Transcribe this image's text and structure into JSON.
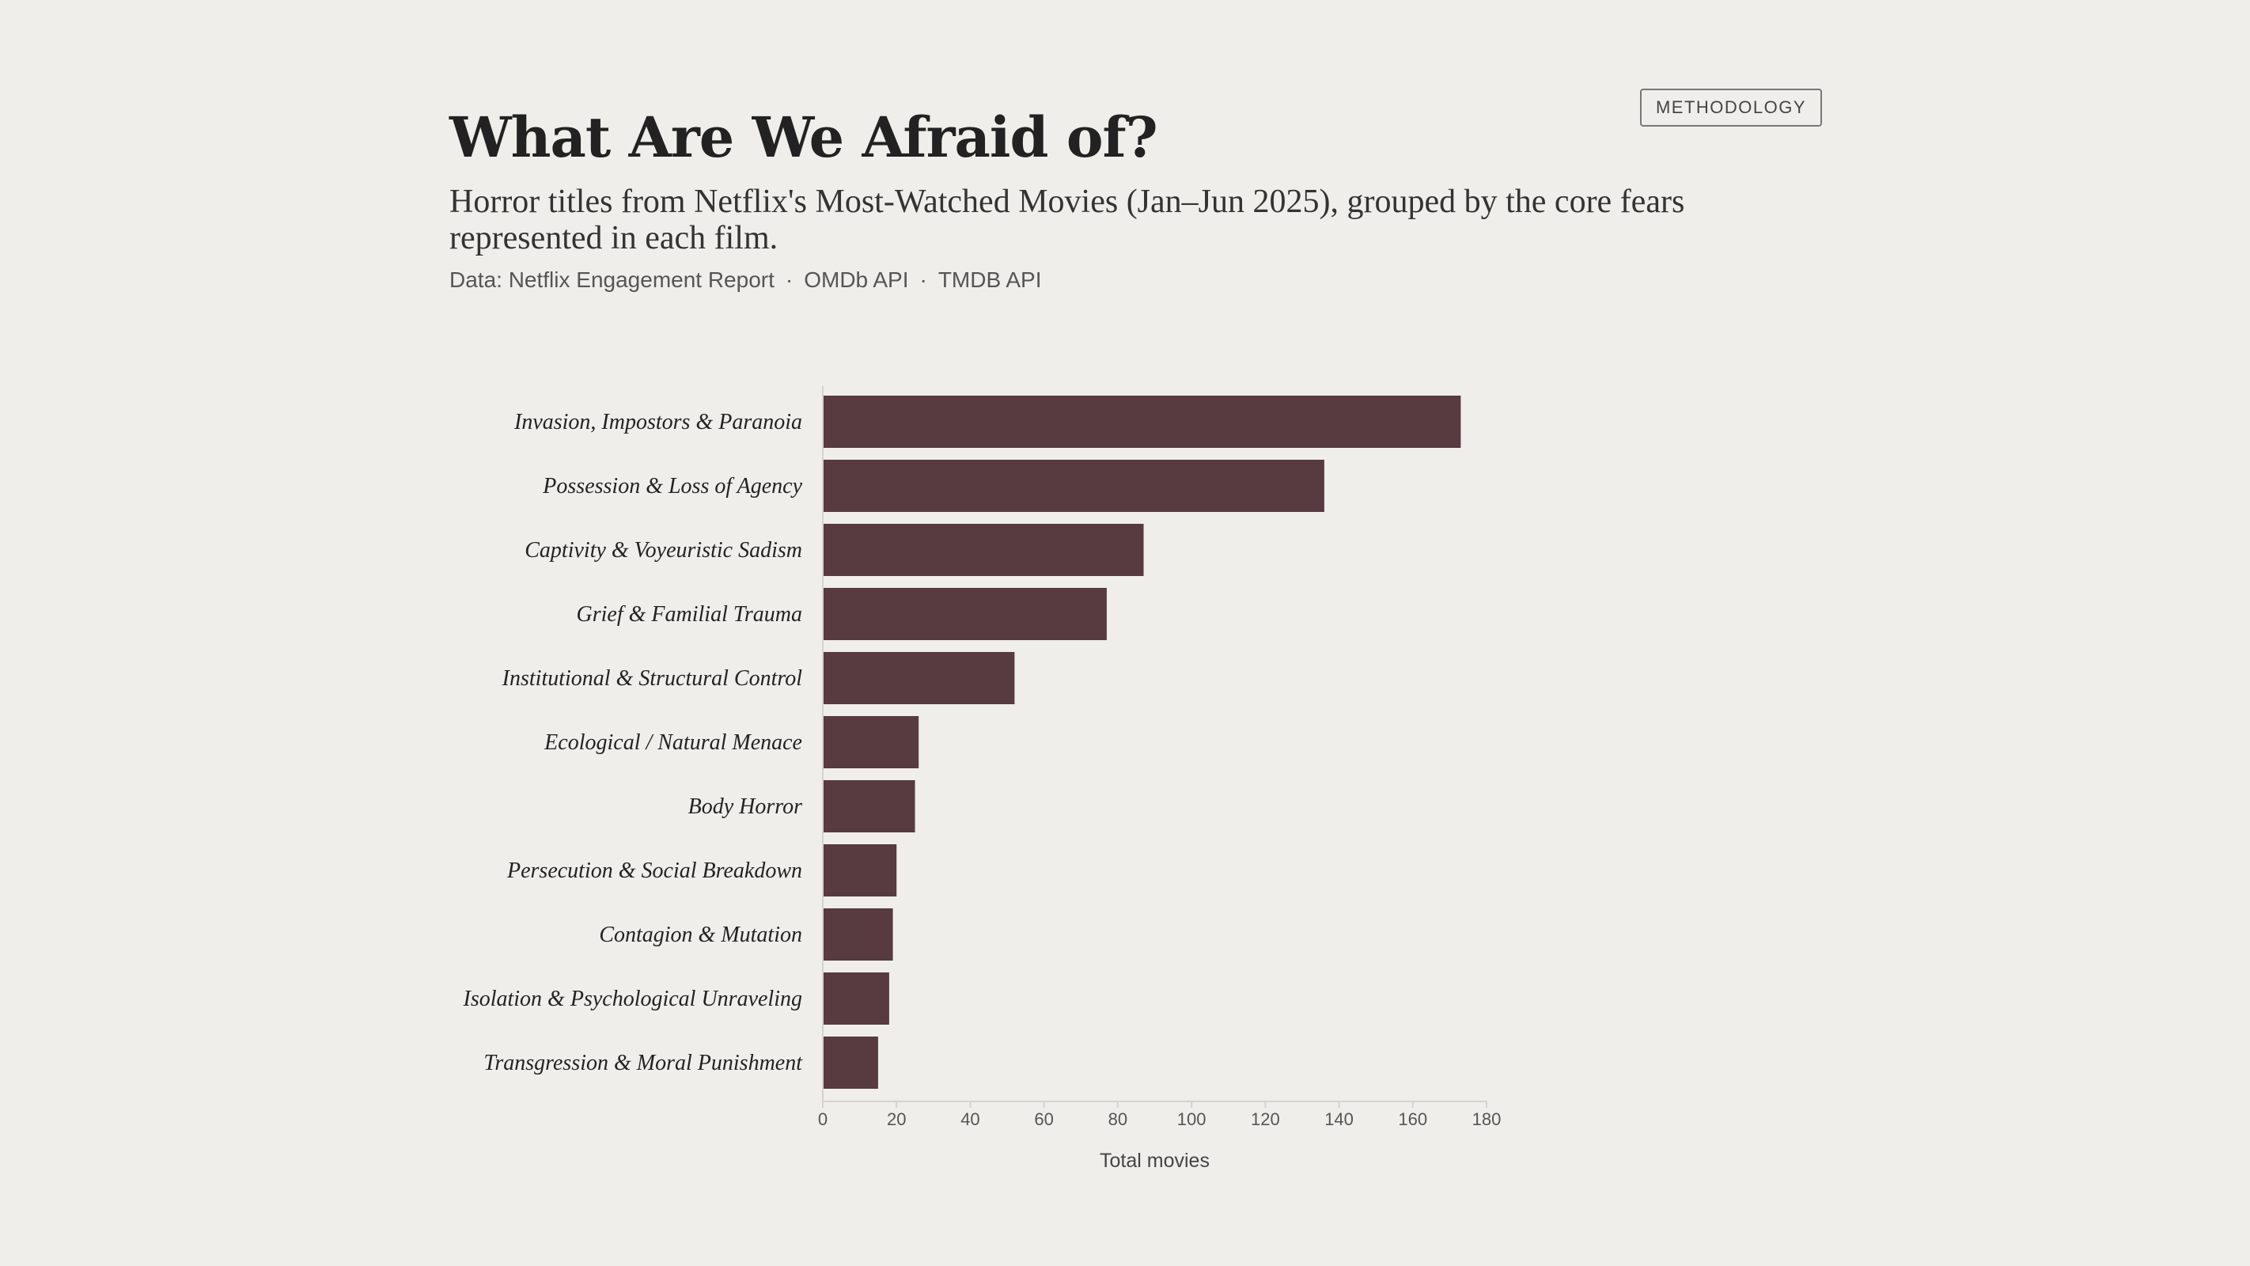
{
  "header": {
    "title": "What Are We Afraid of?",
    "subtitle": "Horror titles from Netflix's Most-Watched Movies (Jan–Jun 2025), grouped by the core fears represented in each film.",
    "sources": [
      "Data: Netflix Engagement Report",
      "OMDb API",
      "TMDB API"
    ],
    "separator": "·"
  },
  "methodology_button": {
    "label": "METHODOLOGY"
  },
  "colors": {
    "bar": "#583a41",
    "axis": "#d6d3cd",
    "background": "#efeeea"
  },
  "chart_data": {
    "type": "bar",
    "orientation": "horizontal",
    "categories": [
      "Invasion, Impostors & Paranoia",
      "Possession & Loss of Agency",
      "Captivity & Voyeuristic Sadism",
      "Grief & Familial Trauma",
      "Institutional & Structural Control",
      "Ecological / Natural Menace",
      "Body Horror",
      "Persecution & Social Breakdown",
      "Contagion & Mutation",
      "Isolation & Psychological Unraveling",
      "Transgression & Moral Punishment"
    ],
    "values": [
      173,
      136,
      87,
      77,
      52,
      26,
      25,
      20,
      19,
      18,
      15
    ],
    "xlabel": "Total movies",
    "xlim": [
      0,
      180
    ],
    "xticks": [
      0,
      20,
      40,
      60,
      80,
      100,
      120,
      140,
      160,
      180
    ],
    "grid": false
  }
}
